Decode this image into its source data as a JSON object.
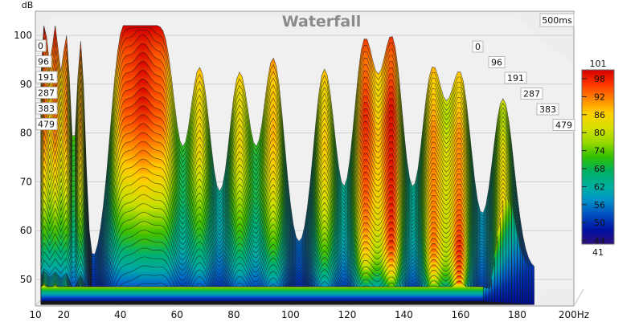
{
  "chart_data": {
    "type": "waterfall",
    "title": "Waterfall",
    "ylabel": "dB",
    "xunit": "Hz",
    "time_window_label": "500ms",
    "x_ticks": [
      "10",
      "20",
      "40",
      "60",
      "80",
      "100",
      "120",
      "140",
      "160",
      "180",
      "200Hz"
    ],
    "y_ticks": [
      "50",
      "60",
      "70",
      "80",
      "90",
      "100"
    ],
    "xlim": [
      10,
      200
    ],
    "ylim": [
      45,
      103
    ],
    "time_slices_ms": [
      "0",
      "96",
      "191",
      "287",
      "383",
      "479"
    ],
    "colorbar": {
      "max_label": "101",
      "min_label": "41",
      "tick_labels": [
        "98",
        "92",
        "86",
        "80",
        "74",
        "68",
        "62",
        "56",
        "50",
        "44"
      ],
      "colors": [
        "#d40000",
        "#ff3300",
        "#ff8800",
        "#ffd000",
        "#d8e000",
        "#96d800",
        "#30c000",
        "#00b060",
        "#00b0a0",
        "#0090c8",
        "#0050c0",
        "#0010a0",
        "#301080"
      ]
    },
    "peaks": [
      {
        "hz": 13,
        "db": 101.5
      },
      {
        "hz": 17,
        "db": 98.5
      },
      {
        "hz": 21,
        "db": 98
      },
      {
        "hz": 26,
        "db": 98.5
      },
      {
        "hz": 40,
        "db": 95
      },
      {
        "hz": 48,
        "db": 95.5
      },
      {
        "hz": 56,
        "db": 93.5
      },
      {
        "hz": 68,
        "db": 93
      },
      {
        "hz": 82,
        "db": 92
      },
      {
        "hz": 94,
        "db": 95
      },
      {
        "hz": 112,
        "db": 93
      },
      {
        "hz": 126,
        "db": 97.5
      },
      {
        "hz": 136,
        "db": 98
      },
      {
        "hz": 150,
        "db": 92
      },
      {
        "hz": 160,
        "db": 91
      },
      {
        "hz": 175,
        "db": 87
      }
    ]
  }
}
